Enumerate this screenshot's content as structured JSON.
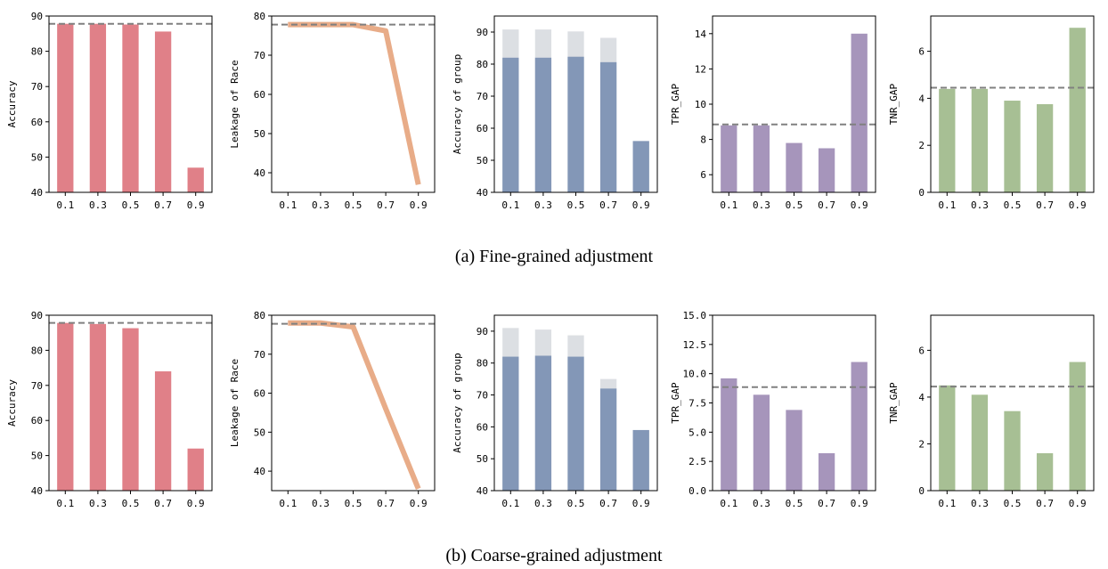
{
  "captions": {
    "top": "(a)  Fine-grained adjustment",
    "bottom": "(b)  Coarse-grained adjustment"
  },
  "colors": {
    "accuracy": "#e08088",
    "leakage": "#e8ac88",
    "group_base": "#8397b7",
    "group_top": "#dcdfe3",
    "tpr": "#a695bb",
    "tnr": "#a7bf94",
    "reference_line": "#808080"
  },
  "chart_data": [
    {
      "id": "a1",
      "row": "fine",
      "type": "bar",
      "categories": [
        "0.1",
        "0.3",
        "0.5",
        "0.7",
        "0.9"
      ],
      "values": [
        87.8,
        87.8,
        87.6,
        85.6,
        47.0
      ],
      "ylabel": "Accuracy",
      "ylim": [
        40,
        90
      ],
      "yticks": [
        "40",
        "50",
        "60",
        "70",
        "80",
        "90"
      ],
      "reference": 87.8,
      "color_key": "accuracy"
    },
    {
      "id": "a2",
      "row": "fine",
      "type": "line",
      "categories": [
        "0.1",
        "0.3",
        "0.5",
        "0.7",
        "0.9"
      ],
      "values": [
        77.8,
        77.8,
        77.8,
        76.2,
        37.0
      ],
      "ylabel": "Leakage of Race",
      "ylim": [
        35,
        80
      ],
      "yticks": [
        "40",
        "50",
        "60",
        "70",
        "80"
      ],
      "reference": 77.8,
      "color_key": "leakage"
    },
    {
      "id": "a3",
      "row": "fine",
      "type": "bar",
      "categories": [
        "0.1",
        "0.3",
        "0.5",
        "0.7",
        "0.9"
      ],
      "series": [
        {
          "name": "base",
          "values": [
            82.0,
            82.0,
            82.3,
            80.6,
            56.0
          ]
        },
        {
          "name": "top",
          "values": [
            90.8,
            90.8,
            90.2,
            88.2,
            56.0
          ]
        }
      ],
      "ylabel": "Accuracy of group",
      "ylim": [
        40,
        95
      ],
      "yticks": [
        "40",
        "50",
        "60",
        "70",
        "80",
        "90"
      ],
      "color_key": "group_base"
    },
    {
      "id": "a4",
      "row": "fine",
      "type": "bar",
      "categories": [
        "0.1",
        "0.3",
        "0.5",
        "0.7",
        "0.9"
      ],
      "values": [
        8.8,
        8.8,
        7.8,
        7.5,
        14.0
      ],
      "ylabel": "TPR_GAP",
      "ylim": [
        5,
        15
      ],
      "yticks": [
        "6",
        "8",
        "10",
        "12",
        "14"
      ],
      "reference": 8.85,
      "color_key": "tpr"
    },
    {
      "id": "a5",
      "row": "fine",
      "type": "bar",
      "categories": [
        "0.1",
        "0.3",
        "0.5",
        "0.7",
        "0.9"
      ],
      "values": [
        4.4,
        4.4,
        3.9,
        3.75,
        7.0
      ],
      "ylabel": "TNR_GAP",
      "ylim": [
        0,
        7.5
      ],
      "yticks": [
        "0",
        "2",
        "4",
        "6"
      ],
      "reference": 4.45,
      "color_key": "tnr"
    },
    {
      "id": "b1",
      "row": "coarse",
      "type": "bar",
      "categories": [
        "0.1",
        "0.3",
        "0.5",
        "0.7",
        "0.9"
      ],
      "values": [
        87.8,
        87.5,
        86.3,
        74.0,
        52.0
      ],
      "ylabel": "Accuracy",
      "ylim": [
        40,
        90
      ],
      "yticks": [
        "40",
        "50",
        "60",
        "70",
        "80",
        "90"
      ],
      "reference": 87.8,
      "color_key": "accuracy"
    },
    {
      "id": "b2",
      "row": "coarse",
      "type": "line",
      "categories": [
        "0.1",
        "0.3",
        "0.5",
        "0.7",
        "0.9"
      ],
      "values": [
        78.0,
        78.0,
        77.0,
        56.0,
        35.5
      ],
      "ylabel": "Leakage of Race",
      "ylim": [
        35,
        80
      ],
      "yticks": [
        "40",
        "50",
        "60",
        "70",
        "80"
      ],
      "reference": 77.8,
      "color_key": "leakage"
    },
    {
      "id": "b3",
      "row": "coarse",
      "type": "bar",
      "categories": [
        "0.1",
        "0.3",
        "0.5",
        "0.7",
        "0.9"
      ],
      "series": [
        {
          "name": "base",
          "values": [
            82.0,
            82.3,
            82.0,
            72.0,
            59.0
          ]
        },
        {
          "name": "top",
          "values": [
            91.0,
            90.5,
            88.7,
            75.0,
            59.0
          ]
        }
      ],
      "ylabel": "Accuracy of group",
      "ylim": [
        40,
        95
      ],
      "yticks": [
        "40",
        "50",
        "60",
        "70",
        "80",
        "90"
      ],
      "color_key": "group_base"
    },
    {
      "id": "b4",
      "row": "coarse",
      "type": "bar",
      "categories": [
        "0.1",
        "0.3",
        "0.5",
        "0.7",
        "0.9"
      ],
      "values": [
        9.6,
        8.2,
        6.9,
        3.2,
        11.0
      ],
      "ylabel": "TPR_GAP",
      "ylim": [
        0,
        15
      ],
      "yticks": [
        "0.0",
        "2.5",
        "5.0",
        "7.5",
        "10.0",
        "12.5",
        "15.0"
      ],
      "reference": 8.85,
      "color_key": "tpr"
    },
    {
      "id": "b5",
      "row": "coarse",
      "type": "bar",
      "categories": [
        "0.1",
        "0.3",
        "0.5",
        "0.7",
        "0.9"
      ],
      "values": [
        4.5,
        4.1,
        3.4,
        1.6,
        5.5
      ],
      "ylabel": "TNR_GAP",
      "ylim": [
        0,
        7.5
      ],
      "yticks": [
        "0",
        "2",
        "4",
        "6"
      ],
      "reference": 4.45,
      "color_key": "tnr"
    }
  ]
}
